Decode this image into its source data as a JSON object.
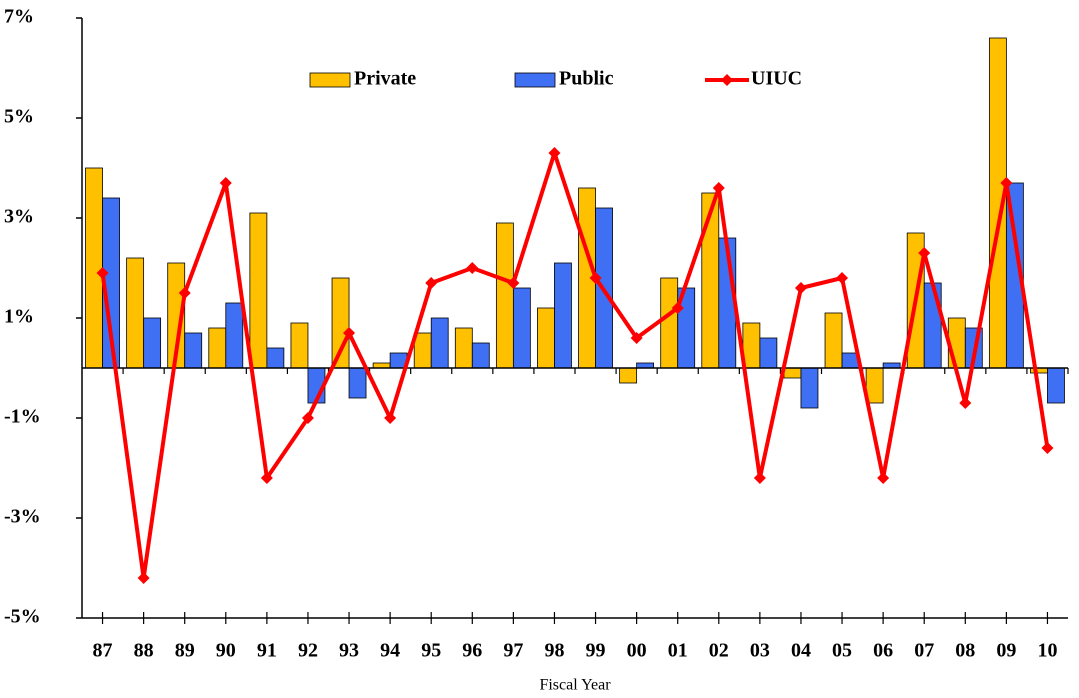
{
  "chart_data": {
    "type": "bar_line",
    "x_label": "Fiscal Year",
    "categories": [
      "87",
      "88",
      "89",
      "90",
      "91",
      "92",
      "93",
      "94",
      "95",
      "96",
      "97",
      "98",
      "99",
      "00",
      "01",
      "02",
      "03",
      "04",
      "05",
      "06",
      "07",
      "08",
      "09",
      "10"
    ],
    "series": [
      {
        "name": "Private",
        "type": "bar",
        "color": "#ffc000",
        "values": [
          4.0,
          2.2,
          2.1,
          0.8,
          3.1,
          0.9,
          1.8,
          0.1,
          0.7,
          0.8,
          2.9,
          1.2,
          3.6,
          -0.3,
          1.8,
          3.5,
          0.9,
          -0.2,
          1.1,
          -0.7,
          2.7,
          1.0,
          6.6,
          -0.1
        ]
      },
      {
        "name": "Public",
        "type": "bar",
        "color": "#3f6ff2",
        "values": [
          3.4,
          1.0,
          0.7,
          1.3,
          0.4,
          -0.7,
          -0.6,
          0.3,
          1.0,
          0.5,
          1.6,
          2.1,
          3.2,
          0.1,
          1.6,
          2.6,
          0.6,
          -0.8,
          0.3,
          0.1,
          1.7,
          0.8,
          3.7,
          -0.7
        ]
      },
      {
        "name": "UIUC",
        "type": "line",
        "color": "#ff0000",
        "values": [
          1.9,
          -4.2,
          1.5,
          3.7,
          -2.2,
          -1.0,
          0.7,
          -1.0,
          1.7,
          2.0,
          1.7,
          4.3,
          1.8,
          0.6,
          1.2,
          3.6,
          -2.2,
          1.6,
          1.8,
          -2.2,
          2.3,
          -0.7,
          3.7,
          -1.6
        ]
      }
    ],
    "ylim": [
      -5,
      7
    ],
    "yticks": [
      {
        "value": -5,
        "label": "-5%"
      },
      {
        "value": -3,
        "label": "-3%"
      },
      {
        "value": -1,
        "label": "-1%"
      },
      {
        "value": 1,
        "label": "1%"
      },
      {
        "value": 3,
        "label": "3%"
      },
      {
        "value": 5,
        "label": "5%"
      },
      {
        "value": 7,
        "label": "7%"
      }
    ]
  }
}
